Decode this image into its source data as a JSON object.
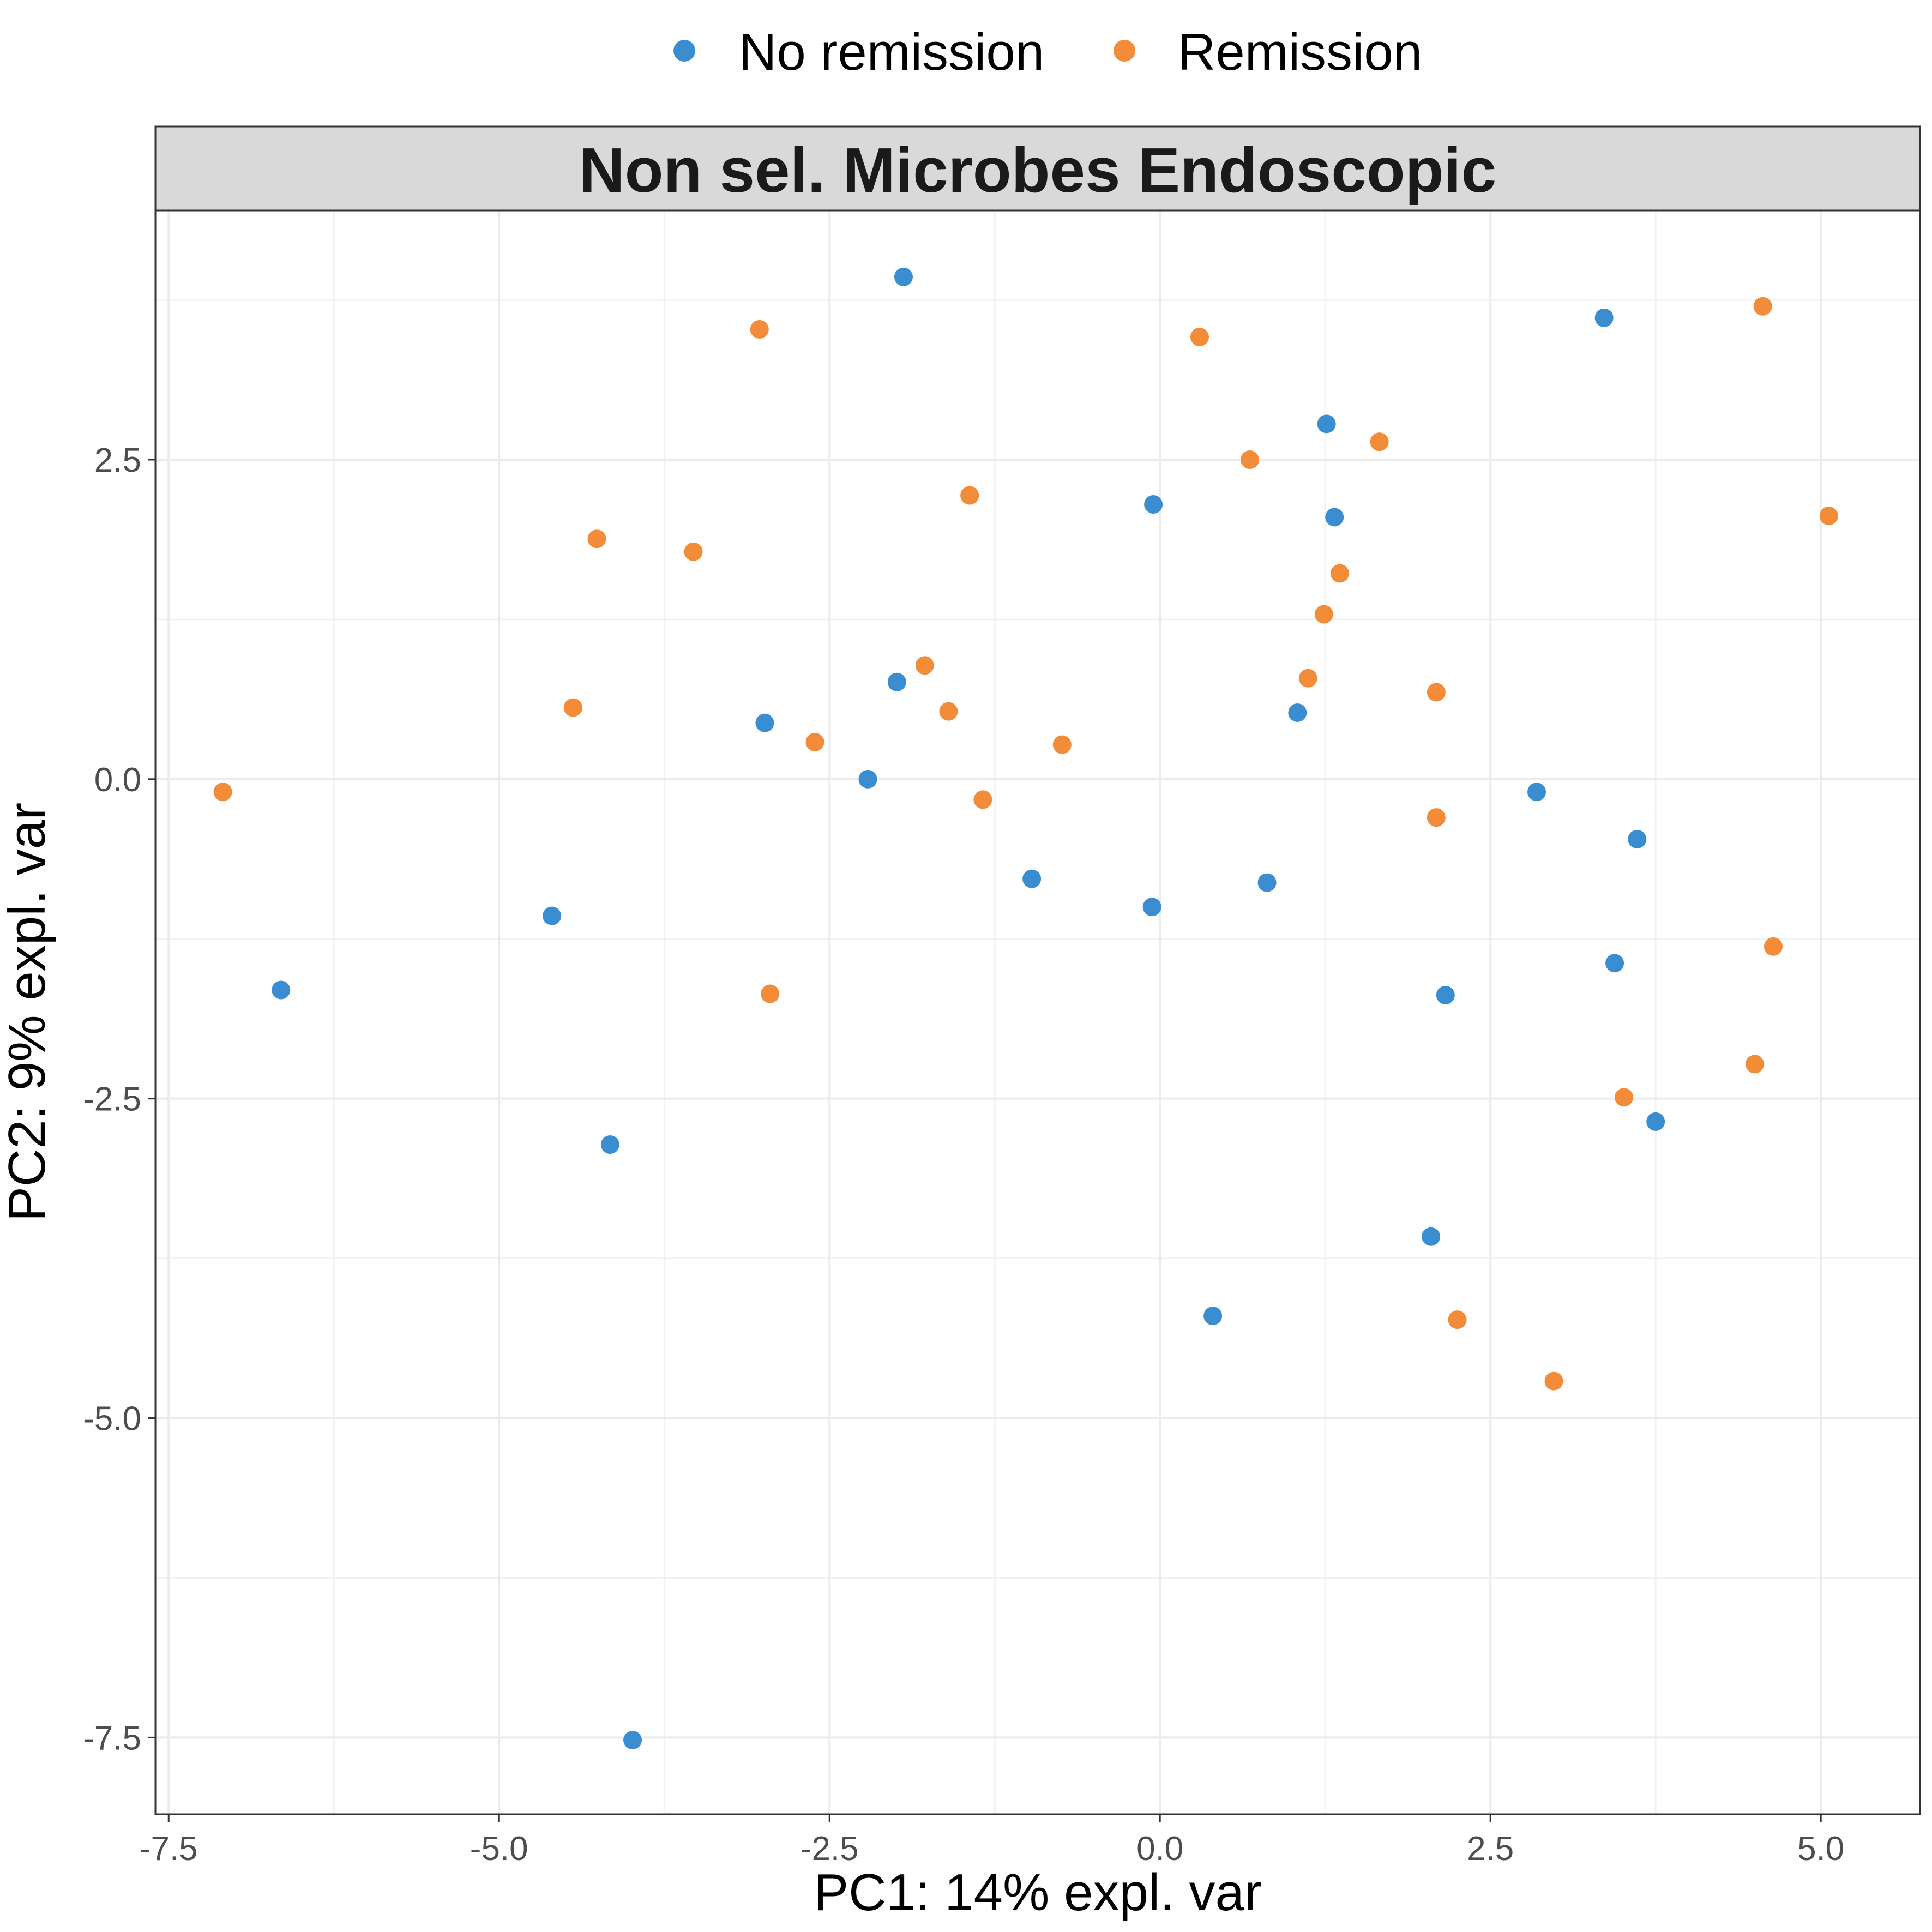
{
  "chart_data": {
    "type": "scatter",
    "title": "Non sel. Microbes Endoscopic",
    "xlabel": "PC1: 14% expl. var",
    "ylabel": "PC2: 9% expl. var",
    "xlim": [
      -7.6,
      5.75
    ],
    "ylim": [
      -8.1,
      4.45
    ],
    "xticks": [
      -7.5,
      -5.0,
      -2.5,
      0.0,
      2.5,
      5.0
    ],
    "xtick_labels": [
      "-7.5",
      "-5.0",
      "-2.5",
      "0.0",
      "2.5",
      "5.0"
    ],
    "yticks": [
      2.5,
      0.0,
      -2.5,
      -5.0,
      -7.5
    ],
    "ytick_labels": [
      "2.5",
      "0.0",
      "-2.5",
      "-5.0",
      "-7.5"
    ],
    "grid": true,
    "legend_position": "top",
    "series": [
      {
        "name": "No remission",
        "color": "#3A8DD0",
        "points": [
          [
            -1.94,
            3.93
          ],
          [
            3.36,
            3.61
          ],
          [
            1.26,
            2.78
          ],
          [
            -0.05,
            2.15
          ],
          [
            1.32,
            2.05
          ],
          [
            -1.99,
            0.76
          ],
          [
            -2.99,
            0.44
          ],
          [
            1.04,
            0.52
          ],
          [
            -2.21,
            0.0
          ],
          [
            2.85,
            -0.1
          ],
          [
            3.61,
            -0.47
          ],
          [
            -0.97,
            -0.78
          ],
          [
            -0.06,
            -1.0
          ],
          [
            0.81,
            -0.81
          ],
          [
            -4.6,
            -1.07
          ],
          [
            -6.65,
            -1.65
          ],
          [
            3.44,
            -1.44
          ],
          [
            2.16,
            -1.69
          ],
          [
            3.75,
            -2.68
          ],
          [
            -4.16,
            -2.86
          ],
          [
            2.05,
            -3.58
          ],
          [
            0.4,
            -4.2
          ],
          [
            -3.99,
            -7.52
          ]
        ]
      },
      {
        "name": "Remission",
        "color": "#F28C38",
        "points": [
          [
            -3.03,
            3.52
          ],
          [
            0.3,
            3.46
          ],
          [
            4.56,
            3.7
          ],
          [
            1.66,
            2.64
          ],
          [
            0.68,
            2.5
          ],
          [
            -1.44,
            2.22
          ],
          [
            -4.26,
            1.88
          ],
          [
            -3.53,
            1.78
          ],
          [
            5.06,
            2.06
          ],
          [
            1.36,
            1.61
          ],
          [
            1.24,
            1.29
          ],
          [
            -1.78,
            0.89
          ],
          [
            1.12,
            0.79
          ],
          [
            2.09,
            0.68
          ],
          [
            -4.44,
            0.56
          ],
          [
            -1.6,
            0.53
          ],
          [
            -2.61,
            0.29
          ],
          [
            -0.74,
            0.27
          ],
          [
            -1.34,
            -0.16
          ],
          [
            2.09,
            -0.3
          ],
          [
            -7.09,
            -0.1
          ],
          [
            -2.95,
            -1.68
          ],
          [
            4.64,
            -1.31
          ],
          [
            4.5,
            -2.23
          ],
          [
            3.51,
            -2.49
          ],
          [
            2.25,
            -4.23
          ],
          [
            2.98,
            -4.71
          ]
        ]
      }
    ]
  }
}
